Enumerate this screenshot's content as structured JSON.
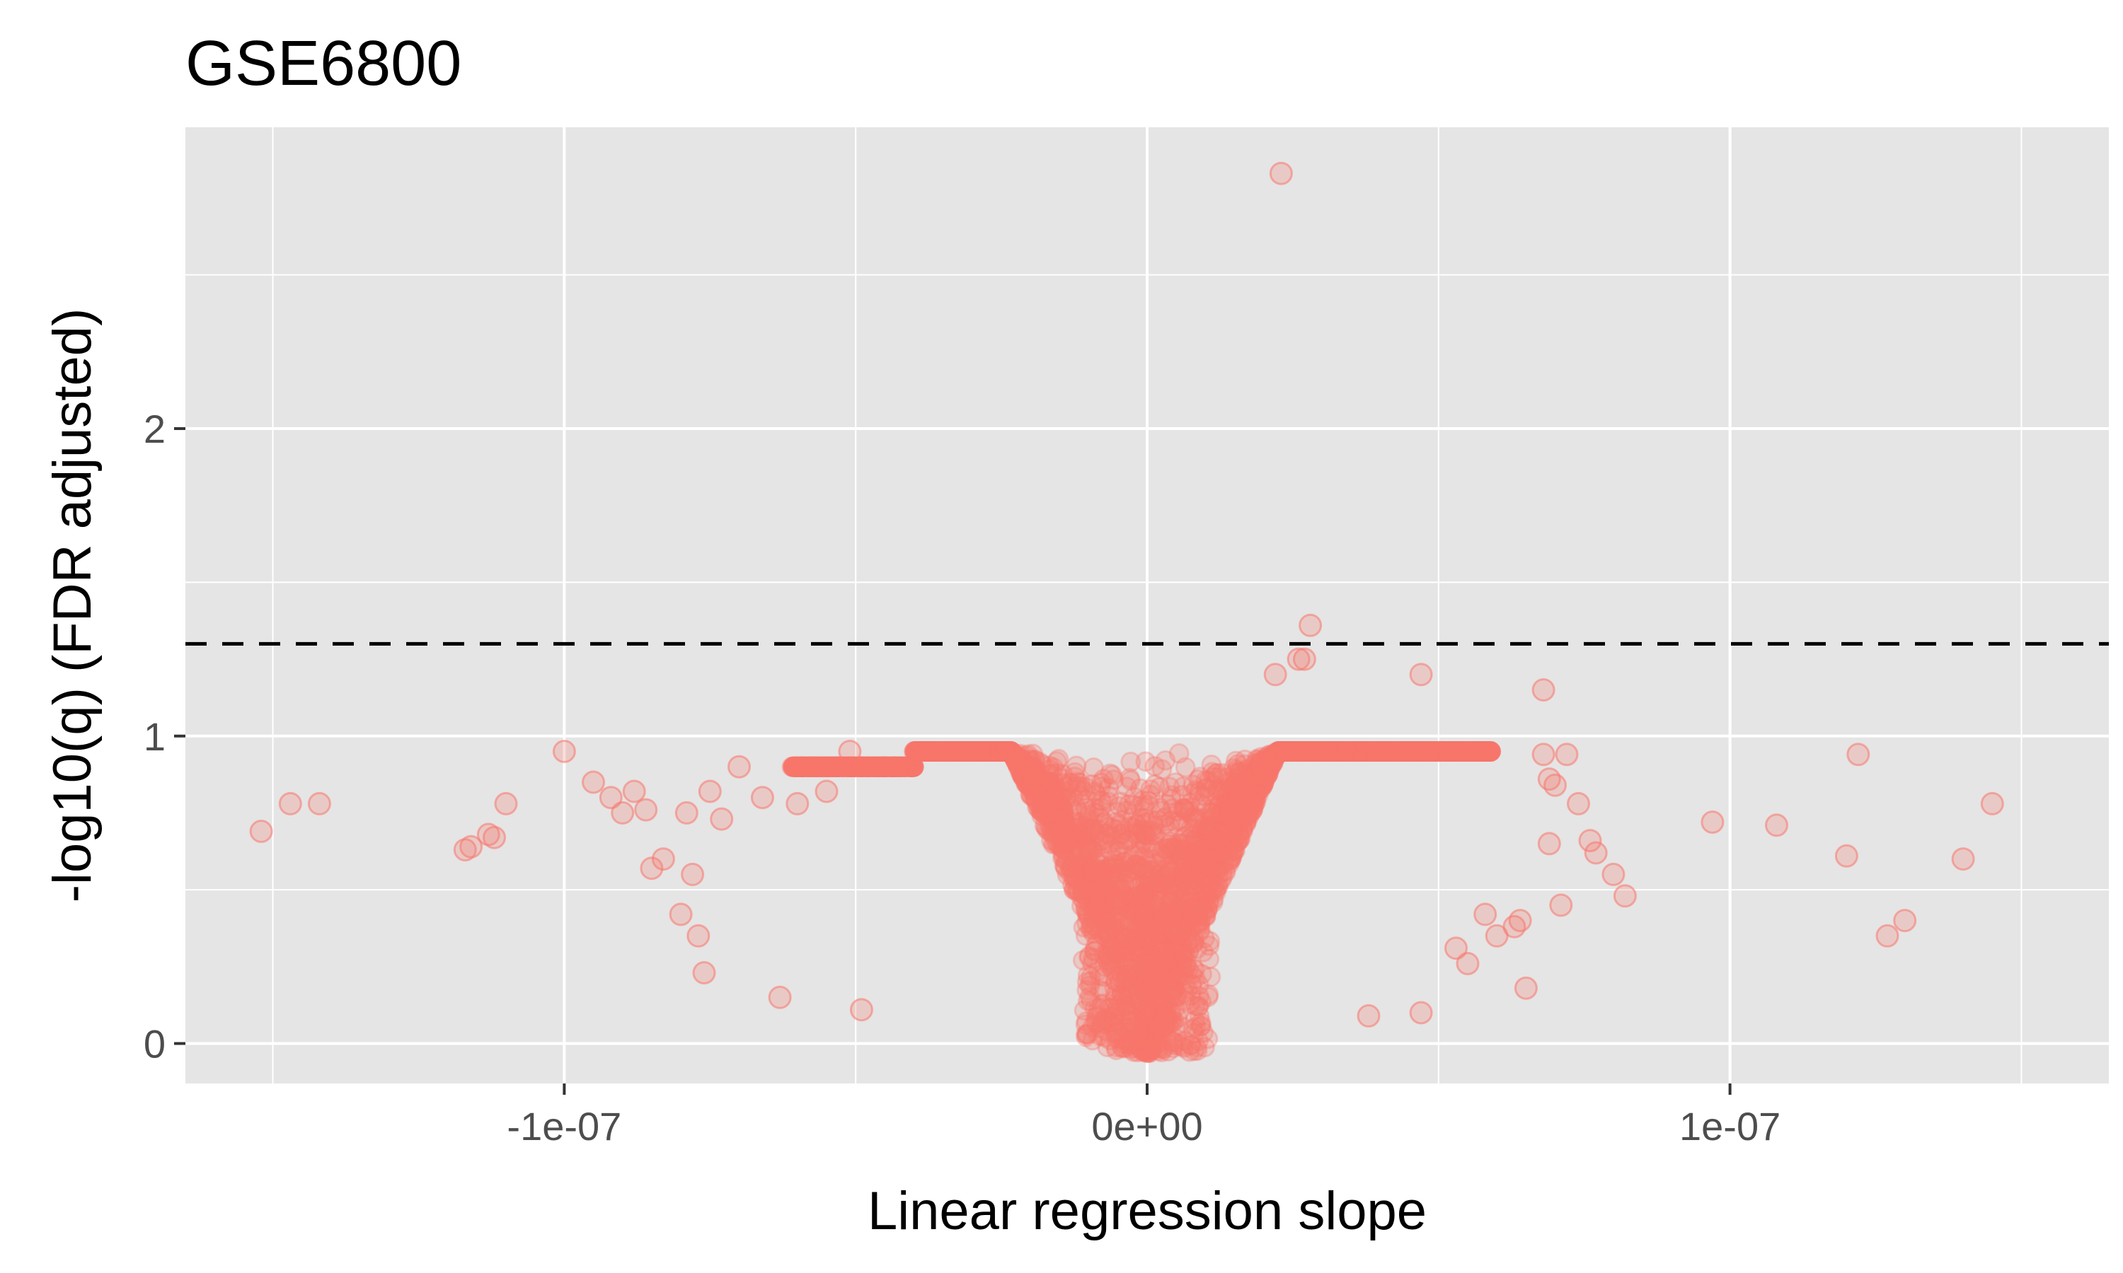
{
  "chart_data": {
    "type": "scatter",
    "title": "GSE6800",
    "xlabel": "Linear regression slope",
    "ylabel": "-log10(q) (FDR adjusted)",
    "xlim": [
      -1.65e-07,
      1.65e-07
    ],
    "ylim": [
      -0.13,
      2.98
    ],
    "x_ticks": [
      -1e-07,
      0,
      1e-07
    ],
    "x_tick_labels": [
      "-1e-07",
      "0e+00",
      "1e-07"
    ],
    "y_ticks": [
      0,
      1,
      2
    ],
    "y_tick_labels": [
      "0",
      "1",
      "2"
    ],
    "grid": true,
    "threshold_line": {
      "y": 1.3,
      "style": "dashed",
      "color": "#000000"
    },
    "point_color": "#F8766D",
    "point_alpha": 0.25,
    "background_color": "#E5E5E5",
    "dense_cloud_note": "many thousands of overlapping points forming a V-shaped cloud around x=0, y from 0 to about 0.95",
    "outlier_points": [
      [
        2.3e-08,
        2.83
      ],
      [
        2.8e-08,
        1.36
      ],
      [
        2.6e-08,
        1.25
      ],
      [
        2.2e-08,
        1.2
      ],
      [
        4.7e-08,
        1.2
      ],
      [
        6.8e-08,
        1.15
      ],
      [
        2.7e-08,
        1.25
      ],
      [
        -1.47e-07,
        0.78
      ],
      [
        -1.42e-07,
        0.78
      ],
      [
        -1.52e-07,
        0.69
      ],
      [
        -1.13e-07,
        0.68
      ],
      [
        -1.12e-07,
        0.67
      ],
      [
        -1.1e-07,
        0.78
      ],
      [
        -1.16e-07,
        0.64
      ],
      [
        -1.17e-07,
        0.63
      ],
      [
        -1e-07,
        0.95
      ],
      [
        -9.5e-08,
        0.85
      ],
      [
        -9.2e-08,
        0.8
      ],
      [
        -9e-08,
        0.75
      ],
      [
        -8.8e-08,
        0.82
      ],
      [
        -8.6e-08,
        0.76
      ],
      [
        -8.5e-08,
        0.57
      ],
      [
        -8.3e-08,
        0.6
      ],
      [
        -7.9e-08,
        0.75
      ],
      [
        -7.5e-08,
        0.82
      ],
      [
        -7.3e-08,
        0.73
      ],
      [
        -7e-08,
        0.9
      ],
      [
        -8e-08,
        0.42
      ],
      [
        -7.7e-08,
        0.35
      ],
      [
        -7.6e-08,
        0.23
      ],
      [
        -7.8e-08,
        0.55
      ],
      [
        -6.6e-08,
        0.8
      ],
      [
        -6.3e-08,
        0.15
      ],
      [
        -6e-08,
        0.78
      ],
      [
        -5.5e-08,
        0.82
      ],
      [
        -5.1e-08,
        0.95
      ],
      [
        -4.9e-08,
        0.11
      ],
      [
        9.7e-08,
        0.72
      ],
      [
        1.08e-07,
        0.71
      ],
      [
        1.22e-07,
        0.94
      ],
      [
        1.2e-07,
        0.61
      ],
      [
        1.27e-07,
        0.35
      ],
      [
        1.3e-07,
        0.4
      ],
      [
        1.4e-07,
        0.6
      ],
      [
        1.45e-07,
        0.78
      ],
      [
        8.2e-08,
        0.48
      ],
      [
        8e-08,
        0.55
      ],
      [
        7.7e-08,
        0.62
      ],
      [
        7.6e-08,
        0.66
      ],
      [
        7.4e-08,
        0.78
      ],
      [
        7.2e-08,
        0.94
      ],
      [
        7.1e-08,
        0.45
      ],
      [
        6.9e-08,
        0.65
      ],
      [
        6.5e-08,
        0.18
      ],
      [
        6.4e-08,
        0.4
      ],
      [
        6.3e-08,
        0.38
      ],
      [
        6e-08,
        0.35
      ],
      [
        5.8e-08,
        0.42
      ],
      [
        5.5e-08,
        0.26
      ],
      [
        5.3e-08,
        0.31
      ],
      [
        4.7e-08,
        0.1
      ],
      [
        3.8e-08,
        0.09
      ],
      [
        6.8e-08,
        0.94
      ],
      [
        6.9e-08,
        0.86
      ],
      [
        7e-08,
        0.84
      ]
    ]
  }
}
